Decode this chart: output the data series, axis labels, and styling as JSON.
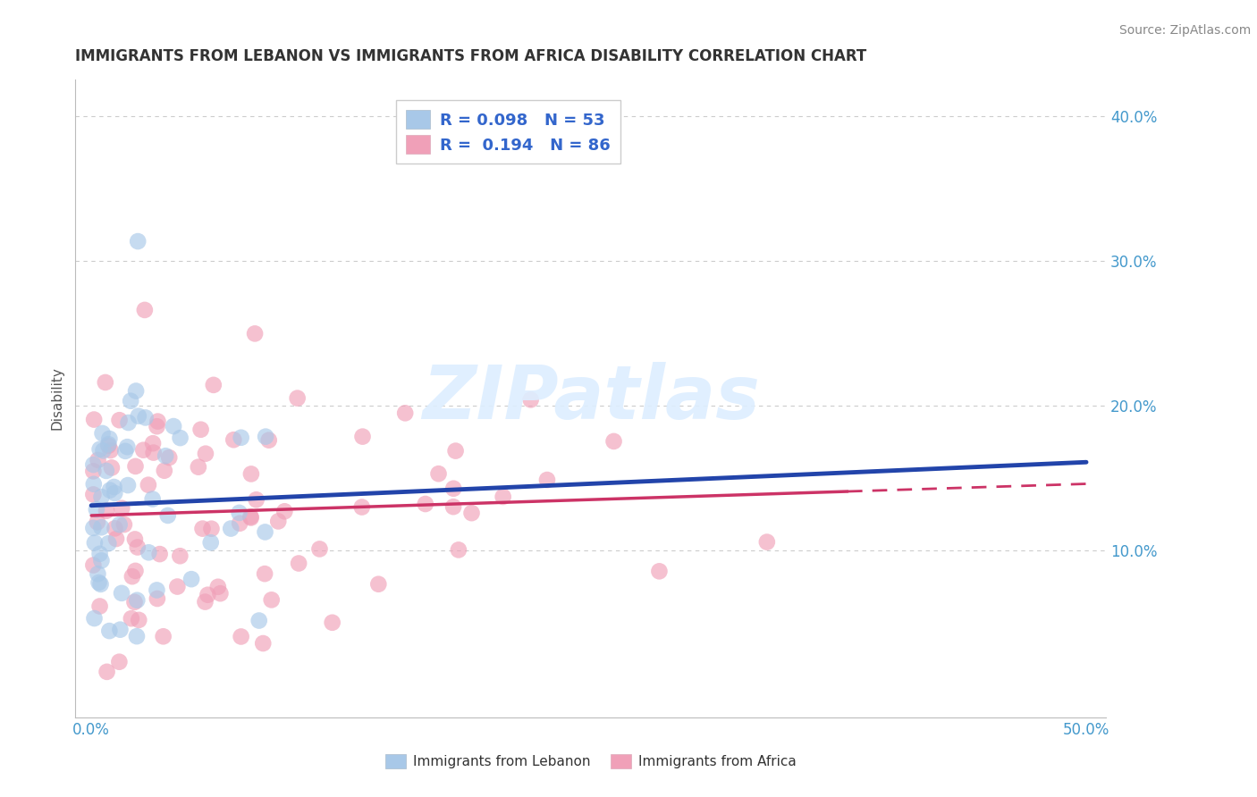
{
  "title": "IMMIGRANTS FROM LEBANON VS IMMIGRANTS FROM AFRICA DISABILITY CORRELATION CHART",
  "source": "Source: ZipAtlas.com",
  "ylabel": "Disability",
  "xlim": [
    0.0,
    0.5
  ],
  "ylim": [
    0.0,
    0.42
  ],
  "yticks": [
    0.1,
    0.2,
    0.3,
    0.4
  ],
  "ytick_labels": [
    "10.0%",
    "20.0%",
    "30.0%",
    "40.0%"
  ],
  "xtick_left": "0.0%",
  "xtick_right": "50.0%",
  "lebanon_R": 0.098,
  "lebanon_N": 53,
  "africa_R": 0.194,
  "africa_N": 86,
  "lebanon_color": "#a8c8e8",
  "lebanon_line_color": "#2244aa",
  "africa_color": "#f0a0b8",
  "africa_line_color": "#cc3366",
  "watermark_color": "#ddeeff",
  "legend_text_color": "#3366cc",
  "tick_color": "#4499cc",
  "grid_color": "#cccccc",
  "title_color": "#333333",
  "source_color": "#888888",
  "ylabel_color": "#555555"
}
